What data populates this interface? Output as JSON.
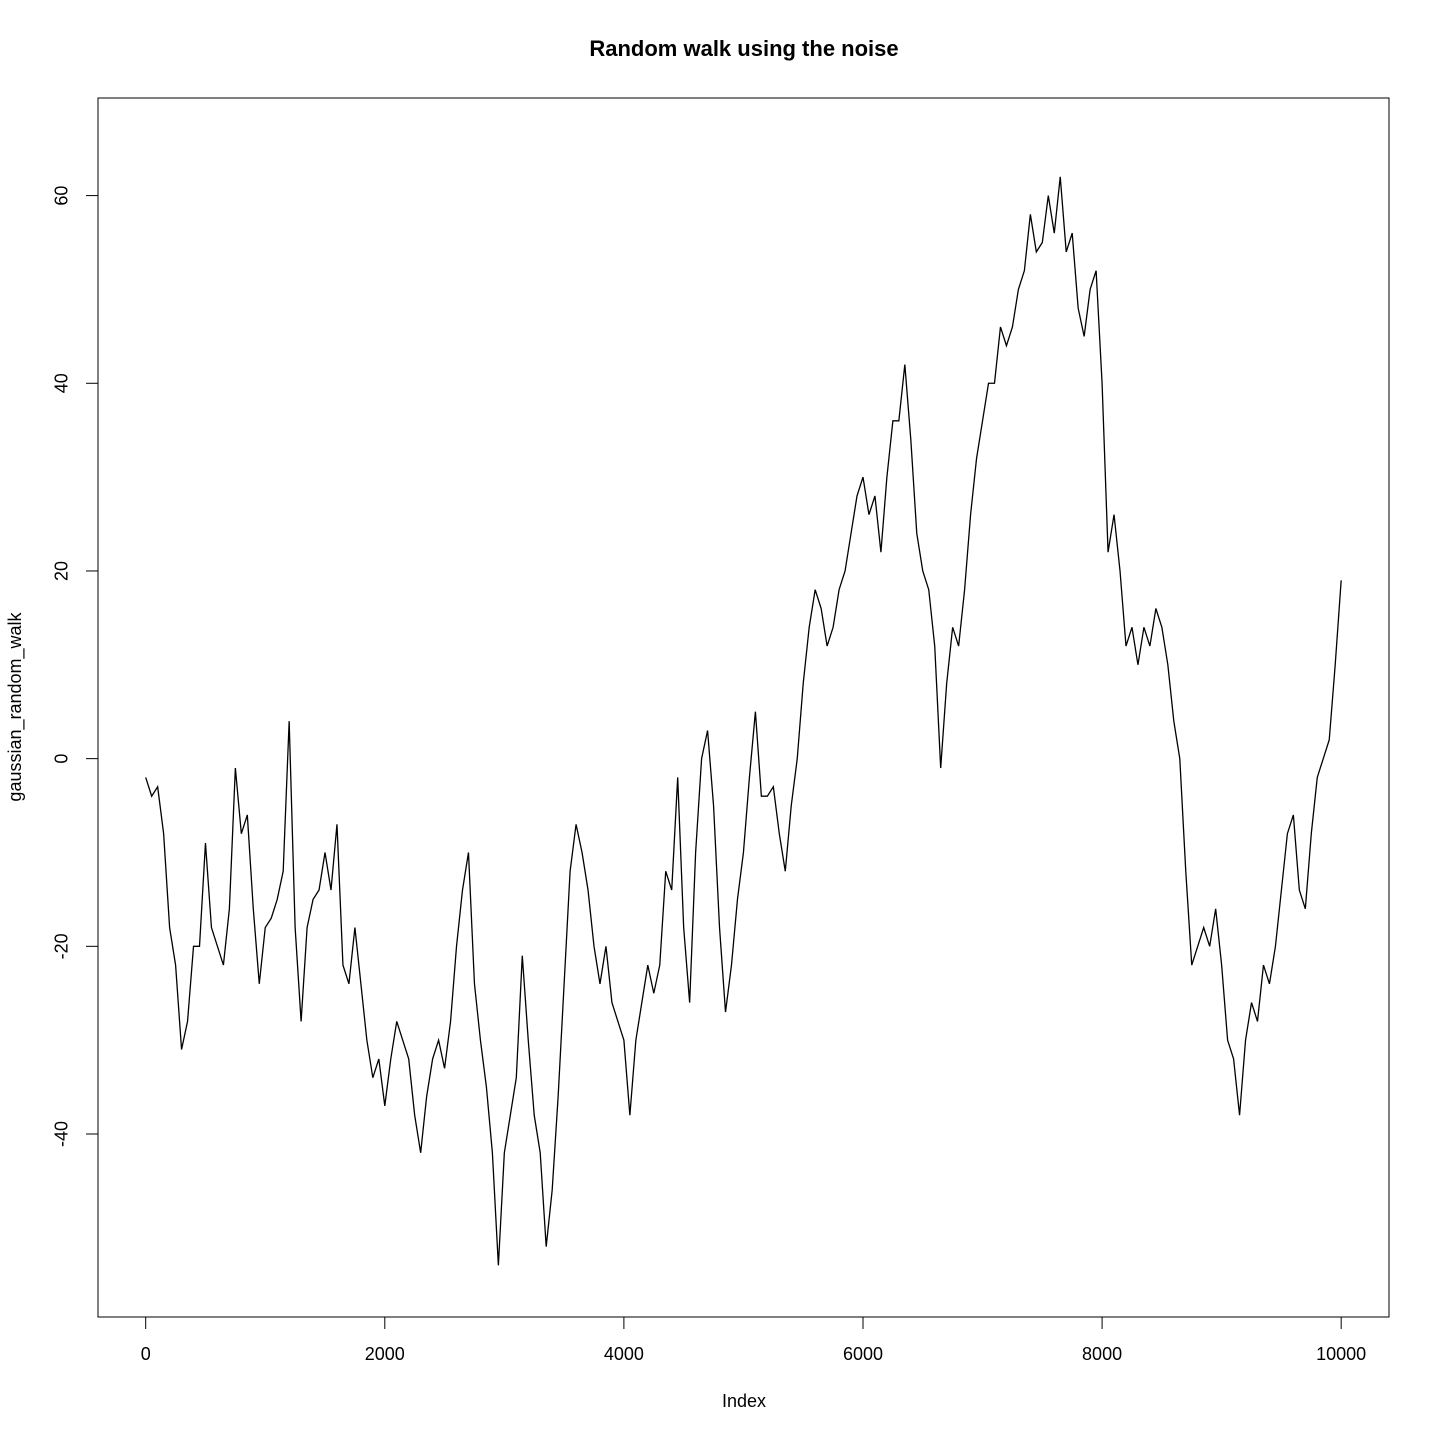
{
  "chart_data": {
    "type": "line",
    "title": "Random walk using the noise",
    "xlabel": "Index",
    "ylabel": "gaussian_random_walk",
    "x": [
      0,
      50,
      100,
      150,
      200,
      250,
      300,
      350,
      400,
      450,
      500,
      550,
      600,
      650,
      700,
      750,
      800,
      850,
      900,
      950,
      1000,
      1050,
      1100,
      1150,
      1200,
      1250,
      1300,
      1350,
      1400,
      1450,
      1500,
      1550,
      1600,
      1650,
      1700,
      1750,
      1800,
      1850,
      1900,
      1950,
      2000,
      2050,
      2100,
      2150,
      2200,
      2250,
      2300,
      2350,
      2400,
      2450,
      2500,
      2550,
      2600,
      2650,
      2700,
      2750,
      2800,
      2850,
      2900,
      2950,
      3000,
      3050,
      3100,
      3150,
      3200,
      3250,
      3300,
      3350,
      3400,
      3450,
      3500,
      3550,
      3600,
      3650,
      3700,
      3750,
      3800,
      3850,
      3900,
      3950,
      4000,
      4050,
      4100,
      4150,
      4200,
      4250,
      4300,
      4350,
      4400,
      4450,
      4500,
      4550,
      4600,
      4650,
      4700,
      4750,
      4800,
      4850,
      4900,
      4950,
      5000,
      5050,
      5100,
      5150,
      5200,
      5250,
      5300,
      5350,
      5400,
      5450,
      5500,
      5550,
      5600,
      5650,
      5700,
      5750,
      5800,
      5850,
      5900,
      5950,
      6000,
      6050,
      6100,
      6150,
      6200,
      6250,
      6300,
      6350,
      6400,
      6450,
      6500,
      6550,
      6600,
      6650,
      6700,
      6750,
      6800,
      6850,
      6900,
      6950,
      7000,
      7050,
      7100,
      7150,
      7200,
      7250,
      7300,
      7350,
      7400,
      7450,
      7500,
      7550,
      7600,
      7650,
      7700,
      7750,
      7800,
      7850,
      7900,
      7950,
      8000,
      8050,
      8100,
      8150,
      8200,
      8250,
      8300,
      8350,
      8400,
      8450,
      8500,
      8550,
      8600,
      8650,
      8700,
      8750,
      8800,
      8850,
      8900,
      8950,
      9000,
      9050,
      9100,
      9150,
      9200,
      9250,
      9300,
      9350,
      9400,
      9450,
      9500,
      9550,
      9600,
      9650,
      9700,
      9750,
      9800,
      9850,
      9900,
      9950,
      10000
    ],
    "series": [
      {
        "color": "#000000",
        "values": [
          -2,
          -4,
          -3,
          -8,
          -18,
          -22,
          -31,
          -28,
          -20,
          -20,
          -9,
          -18,
          -20,
          -22,
          -16,
          -1,
          -8,
          -6,
          -16,
          -24,
          -18,
          -17,
          -15,
          -12,
          4,
          -18,
          -28,
          -18,
          -15,
          -14,
          -10,
          -14,
          -7,
          -22,
          -24,
          -18,
          -24,
          -30,
          -34,
          -32,
          -37,
          -32,
          -28,
          -30,
          -32,
          -38,
          -42,
          -36,
          -32,
          -30,
          -33,
          -28,
          -20,
          -14,
          -10,
          -24,
          -30,
          -35,
          -42,
          -54,
          -42,
          -38,
          -34,
          -21,
          -30,
          -38,
          -42,
          -52,
          -46,
          -36,
          -24,
          -12,
          -7,
          -10,
          -14,
          -20,
          -24,
          -20,
          -26,
          -28,
          -30,
          -38,
          -30,
          -26,
          -22,
          -25,
          -22,
          -12,
          -14,
          -2,
          -18,
          -26,
          -10,
          0,
          3,
          -5,
          -18,
          -27,
          -22,
          -15,
          -10,
          -2,
          5,
          -4,
          -4,
          -3,
          -8,
          -12,
          -5,
          0,
          8,
          14,
          18,
          16,
          12,
          14,
          18,
          20,
          24,
          28,
          30,
          26,
          28,
          22,
          30,
          36,
          36,
          42,
          34,
          24,
          20,
          18,
          12,
          -1,
          8,
          14,
          12,
          18,
          26,
          32,
          36,
          40,
          40,
          46,
          44,
          46,
          50,
          52,
          58,
          54,
          55,
          60,
          56,
          62,
          54,
          56,
          48,
          45,
          50,
          52,
          40,
          22,
          26,
          20,
          12,
          14,
          10,
          14,
          12,
          16,
          14,
          10,
          4,
          0,
          -12,
          -22,
          -20,
          -18,
          -20,
          -16,
          -22,
          -30,
          -32,
          -38,
          -30,
          -26,
          -28,
          -22,
          -24,
          -20,
          -14,
          -8,
          -6,
          -14,
          -16,
          -8,
          -2,
          0,
          2,
          10,
          19
        ]
      }
    ],
    "xlim": [
      -399,
      10400
    ],
    "ylim": [
      -59.5,
      70.4
    ],
    "xticks": [
      0,
      2000,
      4000,
      6000,
      8000,
      10000
    ],
    "yticks": [
      -40,
      -20,
      0,
      20,
      40,
      60
    ]
  }
}
